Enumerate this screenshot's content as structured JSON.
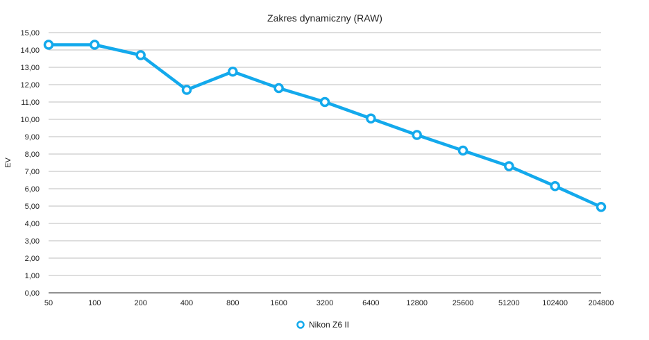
{
  "chart_data": {
    "type": "line",
    "title": "Zakres dynamiczny (RAW)",
    "xlabel": "",
    "ylabel": "EV",
    "categories": [
      "50",
      "100",
      "200",
      "400",
      "800",
      "1600",
      "3200",
      "6400",
      "12800",
      "25600",
      "51200",
      "102400",
      "204800"
    ],
    "y_ticks": [
      "0,00",
      "1,00",
      "2,00",
      "3,00",
      "4,00",
      "5,00",
      "6,00",
      "7,00",
      "8,00",
      "9,00",
      "10,00",
      "11,00",
      "12,00",
      "13,00",
      "14,00",
      "15,00"
    ],
    "ylim": [
      0,
      15
    ],
    "grid": true,
    "legend_position": "bottom",
    "series": [
      {
        "name": "Nikon Z6 II",
        "color": "#13a9ec",
        "values": [
          14.3,
          14.3,
          13.7,
          11.7,
          12.75,
          11.8,
          11.0,
          10.05,
          9.1,
          8.2,
          7.3,
          6.15,
          4.95
        ]
      }
    ]
  }
}
